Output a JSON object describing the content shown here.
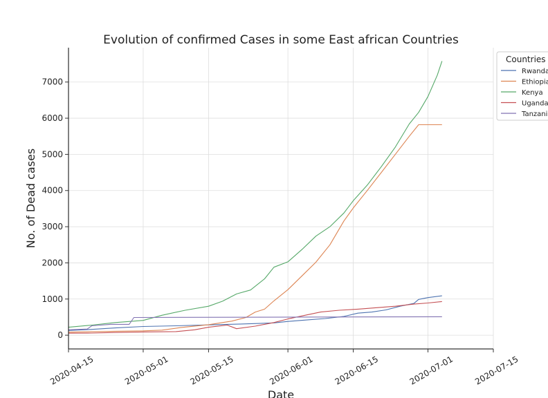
{
  "chart_data": {
    "type": "line",
    "title": "Evolution of confirmed  Cases in some East african Countries",
    "xlabel": "Date",
    "ylabel": "No. of Dead cases",
    "x_ticks": [
      "2020-04-15",
      "2020-05-01",
      "2020-05-15",
      "2020-06-01",
      "2020-06-15",
      "2020-07-01",
      "2020-07-15"
    ],
    "y_ticks": [
      0,
      1000,
      2000,
      3000,
      4000,
      5000,
      6000,
      7000
    ],
    "xlim": [
      "2020-04-15",
      "2020-07-15"
    ],
    "ylim": [
      -380,
      7950
    ],
    "grid": true,
    "legend": {
      "title": "Countries",
      "placement": "outside right"
    },
    "series": [
      {
        "name": "Rwanda",
        "color": "#4c72b0",
        "points": [
          [
            "2020-04-15",
            130
          ],
          [
            "2020-04-20",
            160
          ],
          [
            "2020-04-25",
            200
          ],
          [
            "2020-05-01",
            240
          ],
          [
            "2020-05-08",
            260
          ],
          [
            "2020-05-15",
            285
          ],
          [
            "2020-05-22",
            310
          ],
          [
            "2020-05-29",
            340
          ],
          [
            "2020-06-01",
            380
          ],
          [
            "2020-06-05",
            420
          ],
          [
            "2020-06-09",
            460
          ],
          [
            "2020-06-13",
            520
          ],
          [
            "2020-06-16",
            610
          ],
          [
            "2020-06-19",
            640
          ],
          [
            "2020-06-22",
            700
          ],
          [
            "2020-06-25",
            800
          ],
          [
            "2020-06-28",
            880
          ],
          [
            "2020-06-29",
            990
          ],
          [
            "2020-07-01",
            1040
          ],
          [
            "2020-07-04",
            1090
          ]
        ]
      },
      {
        "name": "Ethiopia",
        "color": "#dd8452",
        "points": [
          [
            "2020-04-15",
            85
          ],
          [
            "2020-04-20",
            95
          ],
          [
            "2020-04-25",
            110
          ],
          [
            "2020-05-01",
            120
          ],
          [
            "2020-05-05",
            140
          ],
          [
            "2020-05-09",
            210
          ],
          [
            "2020-05-15",
            290
          ],
          [
            "2020-05-20",
            390
          ],
          [
            "2020-05-23",
            490
          ],
          [
            "2020-05-25",
            640
          ],
          [
            "2020-05-27",
            720
          ],
          [
            "2020-05-29",
            950
          ],
          [
            "2020-06-01",
            1260
          ],
          [
            "2020-06-04",
            1640
          ],
          [
            "2020-06-07",
            2020
          ],
          [
            "2020-06-10",
            2500
          ],
          [
            "2020-06-13",
            3160
          ],
          [
            "2020-06-15",
            3520
          ],
          [
            "2020-06-18",
            4000
          ],
          [
            "2020-06-21",
            4500
          ],
          [
            "2020-06-24",
            5000
          ],
          [
            "2020-06-27",
            5500
          ],
          [
            "2020-06-29",
            5820
          ],
          [
            "2020-07-04",
            5820
          ]
        ]
      },
      {
        "name": "Kenya",
        "color": "#55a868",
        "points": [
          [
            "2020-04-15",
            220
          ],
          [
            "2020-04-20",
            280
          ],
          [
            "2020-04-25",
            350
          ],
          [
            "2020-05-01",
            410
          ],
          [
            "2020-05-05",
            550
          ],
          [
            "2020-05-10",
            690
          ],
          [
            "2020-05-15",
            800
          ],
          [
            "2020-05-18",
            940
          ],
          [
            "2020-05-21",
            1140
          ],
          [
            "2020-05-24",
            1250
          ],
          [
            "2020-05-27",
            1560
          ],
          [
            "2020-05-29",
            1880
          ],
          [
            "2020-06-01",
            2030
          ],
          [
            "2020-06-04",
            2370
          ],
          [
            "2020-06-07",
            2740
          ],
          [
            "2020-06-10",
            3000
          ],
          [
            "2020-06-13",
            3380
          ],
          [
            "2020-06-15",
            3720
          ],
          [
            "2020-06-18",
            4150
          ],
          [
            "2020-06-21",
            4660
          ],
          [
            "2020-06-24",
            5200
          ],
          [
            "2020-06-27",
            5840
          ],
          [
            "2020-06-29",
            6160
          ],
          [
            "2020-07-01",
            6600
          ],
          [
            "2020-07-03",
            7190
          ],
          [
            "2020-07-04",
            7580
          ]
        ]
      },
      {
        "name": "Uganda",
        "color": "#c44e52",
        "points": [
          [
            "2020-04-15",
            55
          ],
          [
            "2020-04-20",
            60
          ],
          [
            "2020-04-25",
            75
          ],
          [
            "2020-05-01",
            90
          ],
          [
            "2020-05-08",
            100
          ],
          [
            "2020-05-12",
            150
          ],
          [
            "2020-05-15",
            220
          ],
          [
            "2020-05-19",
            280
          ],
          [
            "2020-05-21",
            180
          ],
          [
            "2020-05-25",
            250
          ],
          [
            "2020-05-29",
            350
          ],
          [
            "2020-06-01",
            450
          ],
          [
            "2020-06-05",
            560
          ],
          [
            "2020-06-08",
            640
          ],
          [
            "2020-06-12",
            690
          ],
          [
            "2020-06-16",
            720
          ],
          [
            "2020-06-20",
            760
          ],
          [
            "2020-06-24",
            800
          ],
          [
            "2020-06-28",
            860
          ],
          [
            "2020-07-01",
            890
          ],
          [
            "2020-07-04",
            930
          ]
        ]
      },
      {
        "name": "Tanzania",
        "color": "#8172b2",
        "points": [
          [
            "2020-04-15",
            150
          ],
          [
            "2020-04-19",
            170
          ],
          [
            "2020-04-20",
            260
          ],
          [
            "2020-04-24",
            300
          ],
          [
            "2020-04-28",
            300
          ],
          [
            "2020-04-29",
            490
          ],
          [
            "2020-07-04",
            510
          ]
        ]
      }
    ]
  }
}
